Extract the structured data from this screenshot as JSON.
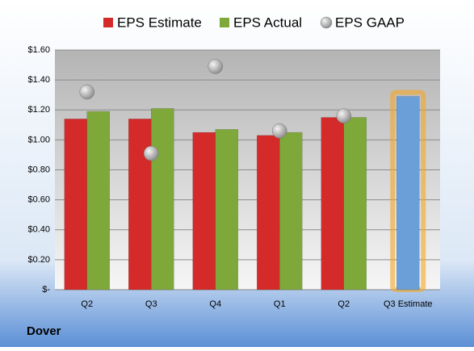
{
  "chart_data": {
    "type": "bar",
    "title": "Dover",
    "categories": [
      "Q2",
      "Q3",
      "Q4",
      "Q1",
      "Q2",
      "Q3 Estimate"
    ],
    "series": [
      {
        "name": "EPS Estimate",
        "color": "#d42a2a",
        "estimate_color": "#6a9fd8",
        "values": [
          1.14,
          1.14,
          1.05,
          1.03,
          1.15,
          1.29
        ]
      },
      {
        "name": "EPS Actual",
        "color": "#7fa83a",
        "values": [
          1.19,
          1.21,
          1.07,
          1.05,
          1.15,
          null
        ]
      },
      {
        "name": "EPS GAAP",
        "color": "#a8a8a8",
        "type": "scatter",
        "values": [
          1.32,
          0.91,
          1.49,
          1.06,
          1.16,
          null
        ]
      }
    ],
    "ylim": [
      0,
      1.6
    ],
    "yticks": [
      {
        "value": 0,
        "label": "$-"
      },
      {
        "value": 0.2,
        "label": "$0.20"
      },
      {
        "value": 0.4,
        "label": "$0.40"
      },
      {
        "value": 0.6,
        "label": "$0.60"
      },
      {
        "value": 0.8,
        "label": "$0.80"
      },
      {
        "value": 1.0,
        "label": "$1.00"
      },
      {
        "value": 1.2,
        "label": "$1.20"
      },
      {
        "value": 1.4,
        "label": "$1.40"
      },
      {
        "value": 1.6,
        "label": "$1.60"
      }
    ],
    "grid": true,
    "legend": "top"
  }
}
